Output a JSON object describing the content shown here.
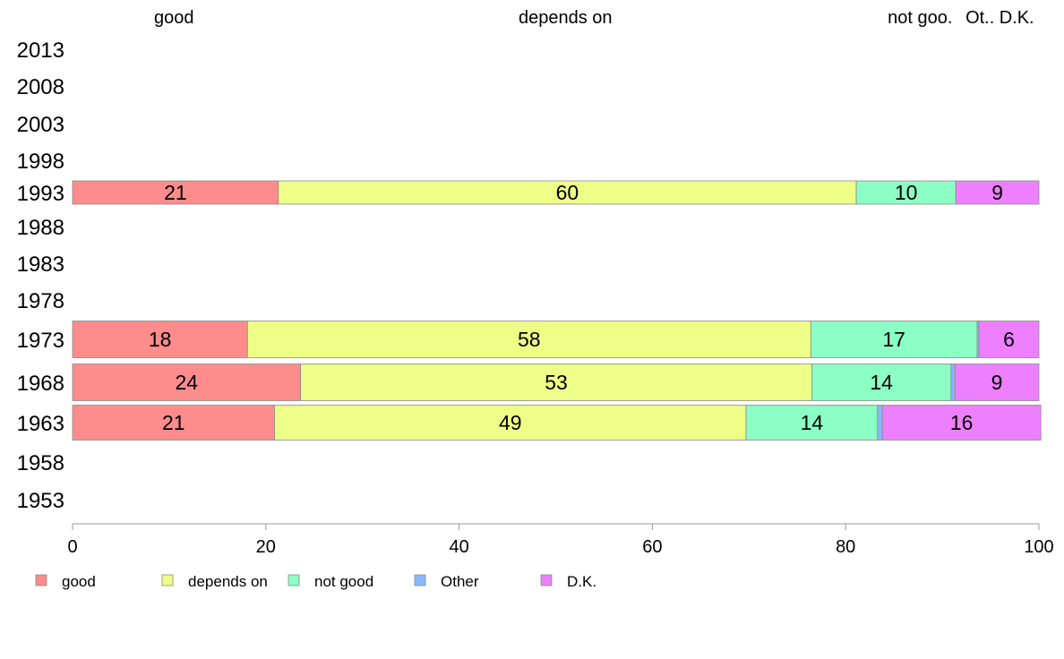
{
  "chart_data": {
    "type": "bar",
    "orientation": "horizontal",
    "stacked": true,
    "categories": [
      "2013",
      "2008",
      "2003",
      "1998",
      "1993",
      "1988",
      "1983",
      "1978",
      "1973",
      "1968",
      "1963",
      "1958",
      "1953"
    ],
    "series": [
      {
        "name": "good",
        "color": "#ff8c8c",
        "values": [
          null,
          null,
          null,
          null,
          21.3,
          null,
          null,
          null,
          18.1,
          23.6,
          20.9,
          null,
          null
        ]
      },
      {
        "name": "depends on",
        "color": "#eeff88",
        "values": [
          null,
          null,
          null,
          null,
          59.8,
          null,
          null,
          null,
          58.3,
          52.9,
          48.8,
          null,
          null
        ]
      },
      {
        "name": "not good",
        "color": "#8cffc4",
        "values": [
          null,
          null,
          null,
          null,
          10.3,
          null,
          null,
          null,
          17.2,
          14.4,
          13.6,
          null,
          null
        ]
      },
      {
        "name": "Other",
        "color": "#88b8ff",
        "values": [
          null,
          null,
          null,
          null,
          0.0,
          null,
          null,
          null,
          0.2,
          0.4,
          0.5,
          null,
          null
        ]
      },
      {
        "name": "D.K.",
        "color": "#ee80ff",
        "values": [
          null,
          null,
          null,
          null,
          8.6,
          null,
          null,
          null,
          6.2,
          8.7,
          16.4,
          null,
          null
        ]
      }
    ],
    "data_labels": {
      "1993": [
        "21",
        "60",
        "10",
        "",
        "9"
      ],
      "1973": [
        "18",
        "58",
        "17",
        "",
        "6"
      ],
      "1968": [
        "24",
        "53",
        "14",
        "",
        "9"
      ],
      "1963": [
        "21",
        "49",
        "14",
        "",
        "16"
      ]
    },
    "top_labels": [
      {
        "text": "good",
        "x": 10.5
      },
      {
        "text": "depends on",
        "x": 51
      },
      {
        "text": "not goo.",
        "x": 87.7
      },
      {
        "text": "Ot..",
        "x": 93.9
      },
      {
        "text": "D.K.",
        "x": 97.7
      }
    ],
    "xlim": [
      0,
      100
    ],
    "xticks": [
      0,
      20,
      40,
      60,
      80,
      100
    ],
    "grid": false,
    "legend_position": "bottom-left"
  }
}
